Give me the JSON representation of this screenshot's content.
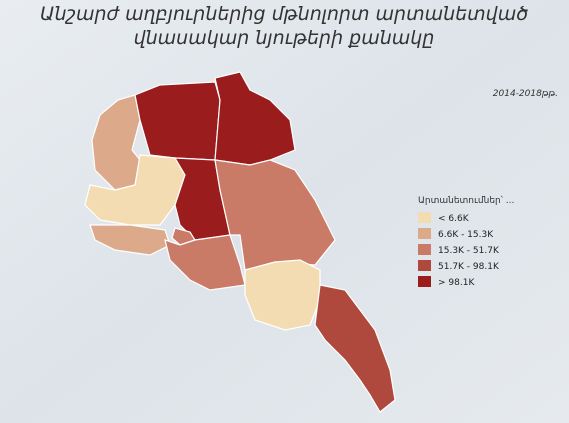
{
  "title_lines": [
    "Անշարժ աղբյուրներից մթնոլորտ արտանետված",
    "վնասակար նյութերի քանակը"
  ],
  "date_note": "2014-2018թթ.",
  "legend": {
    "title": "Արտանետումներ՝ ...",
    "items": [
      {
        "label": "< 6.6K",
        "color": "#f3dcb2"
      },
      {
        "label": "6.6K - 15.3K",
        "color": "#dca98b"
      },
      {
        "label": "15.3K - 51.7K",
        "color": "#c97b67"
      },
      {
        "label": "51.7K - 98.1K",
        "color": "#b0493d"
      },
      {
        "label": "> 98.1K",
        "color": "#9a1c1c"
      }
    ]
  }
}
